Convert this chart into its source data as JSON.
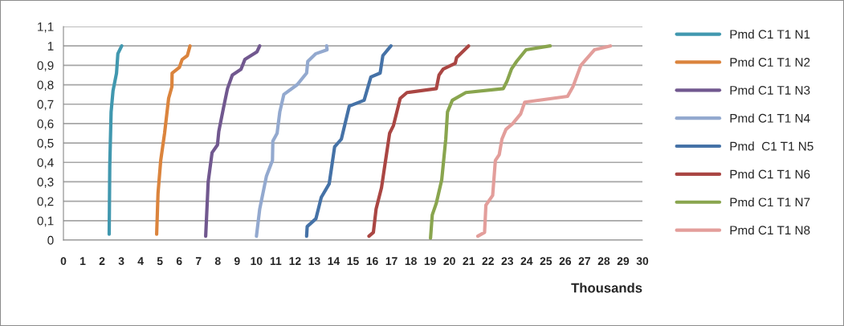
{
  "chart_data": {
    "type": "line",
    "xlabel": "Thousands",
    "xlim": [
      0,
      30
    ],
    "xticks": [
      0,
      1,
      2,
      3,
      4,
      5,
      6,
      7,
      8,
      9,
      10,
      11,
      12,
      13,
      14,
      15,
      16,
      17,
      18,
      19,
      20,
      21,
      22,
      23,
      24,
      25,
      26,
      27,
      28,
      29,
      30
    ],
    "ylim": [
      0,
      1.1
    ],
    "yticks": [
      0,
      {
        "value": 0.1,
        "label": "0,1"
      },
      {
        "value": 0.2,
        "label": "0,2"
      },
      {
        "value": 0.3,
        "label": "0,3"
      },
      {
        "value": 0.4,
        "label": "0,4"
      },
      {
        "value": 0.5,
        "label": "0,5"
      },
      {
        "value": 0.6,
        "label": "0,6"
      },
      {
        "value": 0.7,
        "label": "0,7"
      },
      {
        "value": 0.8,
        "label": "0,8"
      },
      {
        "value": 0.9,
        "label": "0,9"
      },
      1,
      {
        "value": 1.1,
        "label": "1,1"
      }
    ],
    "grid": "y",
    "legend": "right",
    "marker": "none",
    "line_style": "solid",
    "series": [
      {
        "name": "Pmd C1 T1 N1",
        "color": "#4198af",
        "x": [
          2.37,
          2.4,
          2.47,
          2.57,
          2.75,
          2.82,
          3.02
        ],
        "values": [
          0.03,
          0.38,
          0.66,
          0.77,
          0.86,
          0.96,
          1.0
        ]
      },
      {
        "name": "Pmd C1 T1 N2",
        "color": "#db843d",
        "x": [
          4.83,
          4.9,
          5.04,
          5.24,
          5.45,
          5.62,
          5.63,
          6.01,
          6.15,
          6.42,
          6.56
        ],
        "values": [
          0.03,
          0.24,
          0.41,
          0.55,
          0.73,
          0.79,
          0.86,
          0.89,
          0.93,
          0.95,
          1.0
        ]
      },
      {
        "name": "Pmd C1 T1 N3",
        "color": "#71588f",
        "x": [
          7.37,
          7.5,
          7.7,
          7.98,
          8.05,
          8.29,
          8.5,
          8.75,
          9.2,
          9.4,
          10.03,
          10.17
        ],
        "values": [
          0.02,
          0.3,
          0.45,
          0.49,
          0.56,
          0.68,
          0.78,
          0.85,
          0.88,
          0.93,
          0.97,
          1.0
        ]
      },
      {
        "name": "Pmd C1 T1 N4",
        "color": "#93a9cf",
        "x": [
          10.0,
          10.17,
          10.52,
          10.83,
          10.85,
          11.07,
          11.21,
          11.42,
          12.11,
          12.6,
          12.66,
          13.08,
          13.66,
          13.64
        ],
        "values": [
          0.02,
          0.16,
          0.33,
          0.41,
          0.51,
          0.55,
          0.66,
          0.75,
          0.8,
          0.86,
          0.92,
          0.96,
          0.98,
          1.0
        ]
      },
      {
        "name": "Pmd  C1 T1 N5",
        "color": "#4572a7",
        "x": [
          12.6,
          12.63,
          13.08,
          13.36,
          13.77,
          14.05,
          14.4,
          14.81,
          15.58,
          15.93,
          16.41,
          16.55,
          16.97
        ],
        "values": [
          0.02,
          0.07,
          0.11,
          0.22,
          0.29,
          0.48,
          0.52,
          0.69,
          0.72,
          0.84,
          0.86,
          0.95,
          1.0
        ]
      },
      {
        "name": "Pmd C1 T1 N6",
        "color": "#aa4643",
        "x": [
          15.83,
          16.06,
          16.2,
          16.48,
          16.69,
          16.9,
          17.1,
          17.45,
          17.8,
          19.32,
          19.46,
          19.67,
          20.3,
          20.37,
          20.99
        ],
        "values": [
          0.02,
          0.04,
          0.16,
          0.27,
          0.41,
          0.55,
          0.59,
          0.73,
          0.76,
          0.78,
          0.85,
          0.88,
          0.91,
          0.94,
          1.0
        ]
      },
      {
        "name": "Pmd C1 T1 N7",
        "color": "#89a54e",
        "x": [
          19.02,
          19.11,
          19.32,
          19.6,
          19.81,
          19.9,
          20.15,
          20.85,
          22.79,
          22.99,
          23.21,
          23.48,
          23.97,
          25.22
        ],
        "values": [
          0.01,
          0.13,
          0.19,
          0.31,
          0.52,
          0.66,
          0.72,
          0.76,
          0.78,
          0.82,
          0.88,
          0.92,
          0.98,
          1.0
        ]
      },
      {
        "name": "Pmd C1 T1 N8",
        "color": "#e39e9b",
        "x": [
          21.47,
          21.82,
          21.89,
          22.24,
          22.38,
          22.58,
          22.72,
          22.93,
          23.28,
          23.69,
          23.9,
          26.12,
          26.4,
          26.81,
          27.51,
          28.34
        ],
        "values": [
          0.02,
          0.04,
          0.18,
          0.23,
          0.41,
          0.44,
          0.52,
          0.57,
          0.6,
          0.65,
          0.71,
          0.74,
          0.79,
          0.9,
          0.98,
          1.0
        ]
      }
    ]
  }
}
